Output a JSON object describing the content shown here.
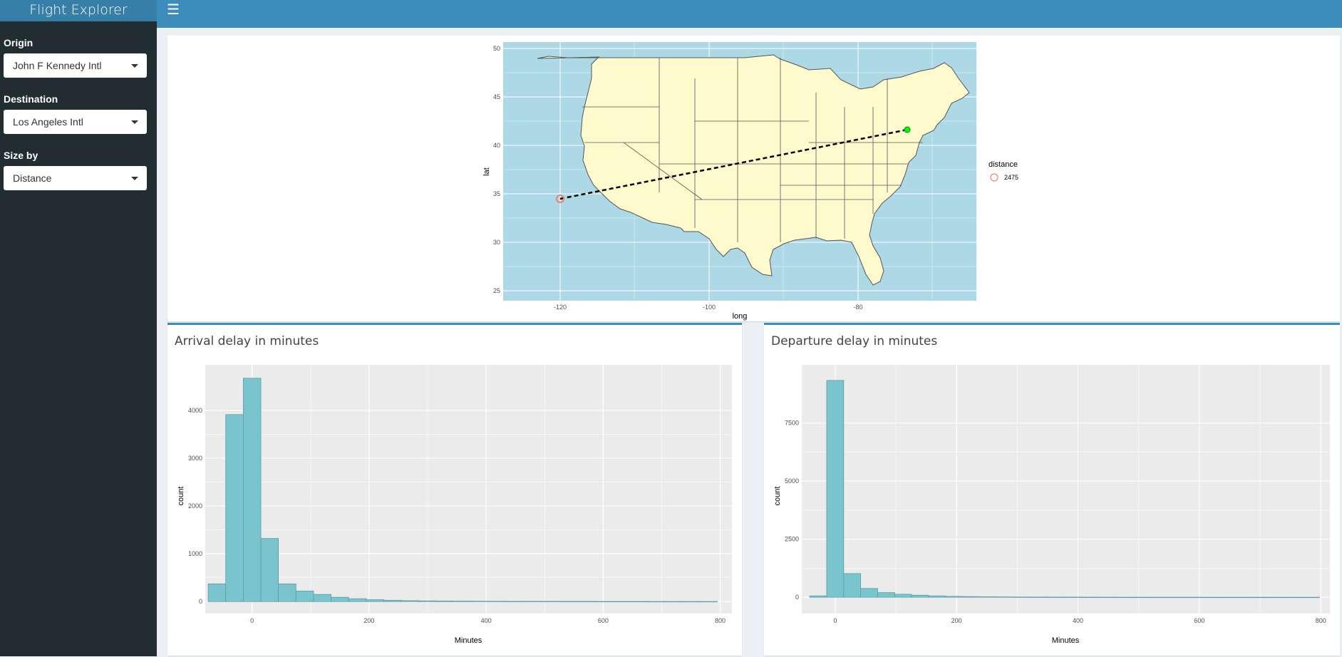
{
  "app": {
    "title": "Flight Explorer",
    "menu_icon": "hamburger-icon"
  },
  "sidebar": {
    "origin": {
      "label": "Origin",
      "value": "John F Kennedy Intl"
    },
    "destination": {
      "label": "Destination",
      "value": "Los Angeles Intl"
    },
    "size_by": {
      "label": "Size by",
      "value": "Distance"
    }
  },
  "map": {
    "xlabel": "long",
    "ylabel": "lat",
    "x_ticks": [
      "-120",
      "-100",
      "-80"
    ],
    "y_ticks": [
      "25",
      "30",
      "35",
      "40",
      "45",
      "50"
    ],
    "legend_title": "distance",
    "legend_value": "2475",
    "colors": {
      "water": "#add8e6",
      "land": "#fffacd",
      "origin": "#00ff00",
      "dest": "#f08070"
    }
  },
  "arrival": {
    "title": "Arrival delay in minutes",
    "chart_data": {
      "type": "bar",
      "xlabel": "Minutes",
      "ylabel": "count",
      "x_ticks": [
        "0",
        "200",
        "400",
        "600",
        "800"
      ],
      "y_ticks": [
        "0",
        "1000",
        "2000",
        "3000",
        "4000"
      ],
      "xlim": [
        -80,
        820
      ],
      "ylim": [
        -250,
        4950
      ],
      "bin_width": 30,
      "bin_start": -75,
      "values": [
        370,
        3910,
        4670,
        1320,
        370,
        220,
        150,
        90,
        60,
        40,
        28,
        20,
        15,
        12,
        10,
        8,
        7,
        6,
        5,
        5,
        4,
        4,
        3,
        3,
        3,
        2,
        2,
        2,
        2
      ],
      "fill": "#7ac5cd",
      "outline": "#5b9ea6"
    }
  },
  "departure": {
    "title": "Departure delay in minutes",
    "chart_data": {
      "type": "bar",
      "xlabel": "Minutes",
      "ylabel": "count",
      "x_ticks": [
        "0",
        "200",
        "400",
        "600",
        "800"
      ],
      "y_ticks": [
        "0",
        "2500",
        "5000",
        "7500"
      ],
      "xlim": [
        -55,
        815
      ],
      "ylim": [
        -700,
        10000
      ],
      "bin_width": 28,
      "bin_start": -42,
      "values": [
        60,
        9330,
        1020,
        380,
        200,
        130,
        90,
        60,
        40,
        30,
        22,
        16,
        12,
        10,
        8,
        7,
        6,
        5,
        4,
        4,
        3,
        3,
        3,
        2,
        2,
        2,
        2,
        2,
        2,
        2
      ],
      "fill": "#7ac5cd",
      "outline": "#5b9ea6"
    }
  }
}
